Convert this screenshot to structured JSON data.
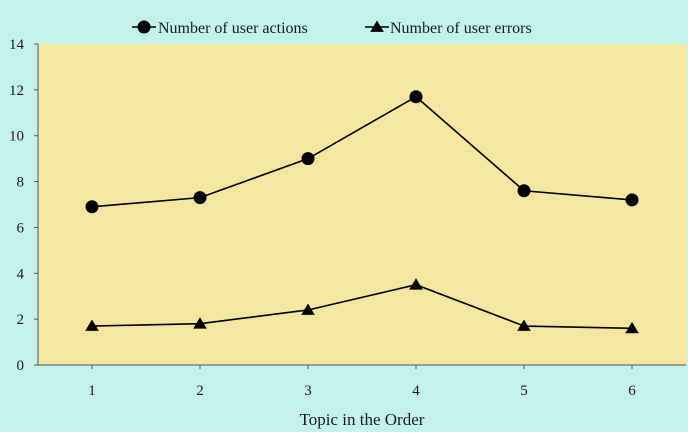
{
  "colors": {
    "background": "#c3f3e8",
    "plot_area": "#f5e6a0",
    "line": "#000000"
  },
  "chart_data": {
    "type": "line",
    "title": "",
    "xlabel": "Topic in the Order",
    "ylabel": "",
    "categories": [
      "1",
      "2",
      "3",
      "4",
      "5",
      "6"
    ],
    "ylim": [
      0,
      14
    ],
    "yticks": [
      "0",
      "2",
      "4",
      "6",
      "8",
      "10",
      "12",
      "14"
    ],
    "grid": false,
    "legend_position": "top",
    "series": [
      {
        "name": "Number of user actions",
        "marker": "circle",
        "values": [
          6.9,
          7.3,
          9.0,
          11.7,
          7.6,
          7.2
        ]
      },
      {
        "name": "Number of user errors",
        "marker": "triangle",
        "values": [
          1.7,
          1.8,
          2.4,
          3.5,
          1.7,
          1.6
        ]
      }
    ]
  }
}
